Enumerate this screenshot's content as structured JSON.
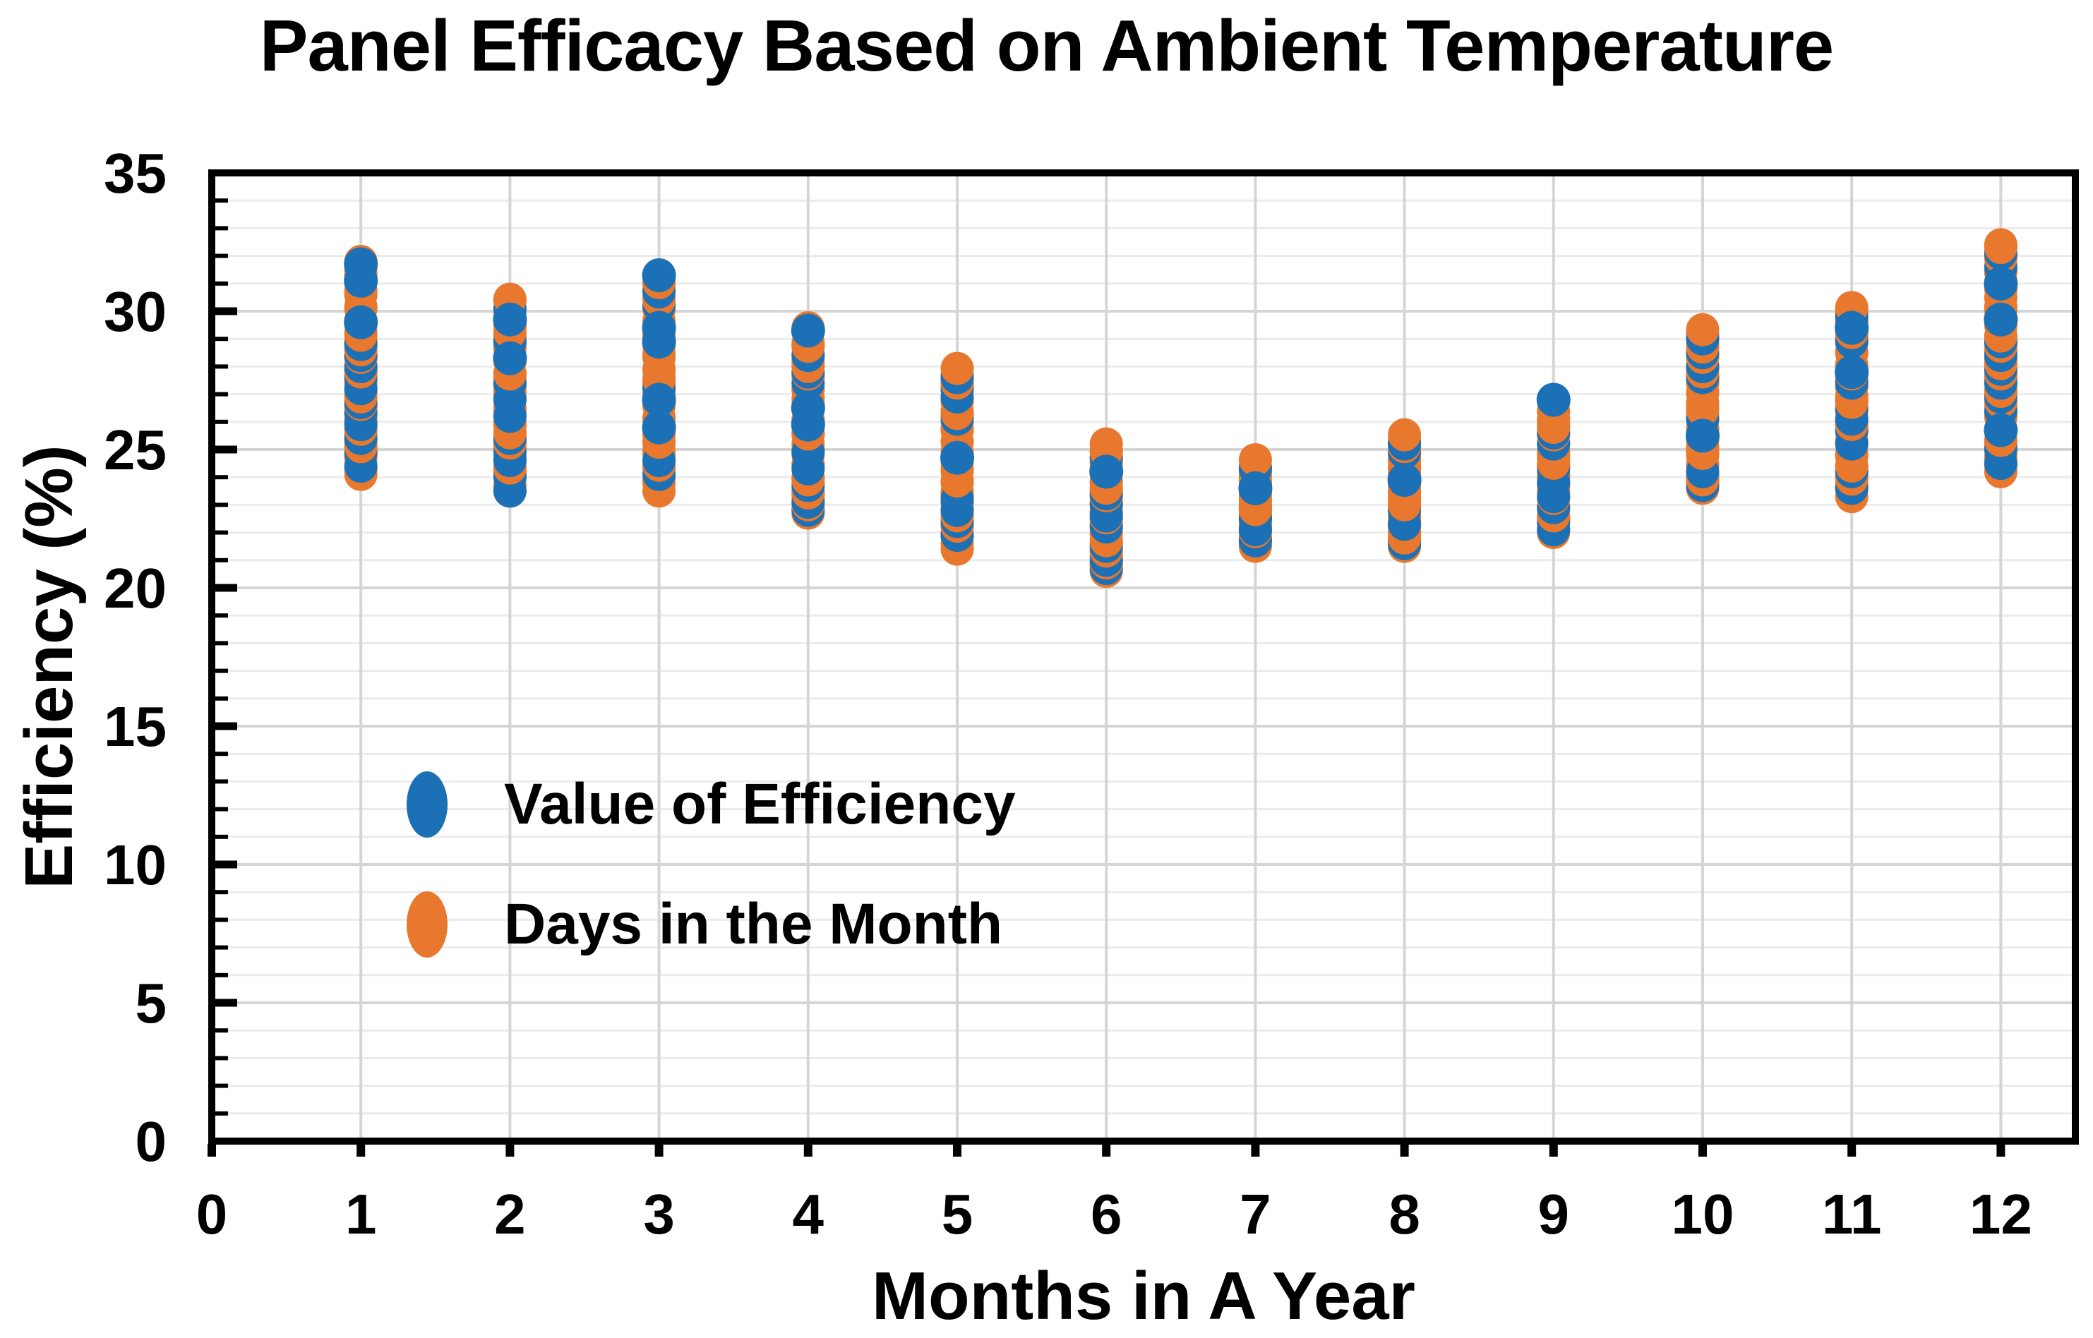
{
  "title": "Panel Efficacy Based on Ambient Temperature",
  "x_axis": {
    "label": "Months in A Year",
    "ticks": [
      0,
      1,
      2,
      3,
      4,
      5,
      6,
      7,
      8,
      9,
      10,
      11,
      12
    ],
    "min": 0,
    "max": 12.5
  },
  "y_axis": {
    "label": "Efficiency (%)",
    "ticks": [
      0,
      5,
      10,
      15,
      20,
      25,
      30,
      35
    ],
    "min": 0,
    "max": 35,
    "minor_step": 1,
    "major_step": 5
  },
  "legend": {
    "items": [
      {
        "label": "Value of Efficiency",
        "series": "efficiency",
        "color": "#1C70B5"
      },
      {
        "label": "Days in the Month",
        "series": "days",
        "color": "#E8782E"
      }
    ],
    "position": "inside left-middle"
  },
  "colors": {
    "efficiency_blue": "#1C70B5",
    "days_orange": "#E8782E",
    "grid_minor": "#EBEBEB",
    "grid_major": "#D5D5D5",
    "spine": "#000000",
    "background": "#FFFFFF",
    "text": "#000000"
  },
  "chart_data": {
    "type": "scatter",
    "title": "Panel Efficacy Based on Ambient Temperature",
    "xlabel": "Months in A Year",
    "ylabel": "Efficiency (%)",
    "xlim": [
      0,
      12.5
    ],
    "ylim": [
      0,
      35
    ],
    "grid": "horizontal minor every 1, horizontal major every 5, vertical line at each month 1-12",
    "legend_position": "inside left-middle",
    "marker": "filled circle, radius ~0.6 efficiency units",
    "series": [
      {
        "name": "Value of Efficiency",
        "color": "#1C70B5",
        "points_key": "efficiency_points",
        "note": "style 0 = thin crescent visible under orange, 2 = wide crescent visible, 1 = fully visible dot"
      },
      {
        "name": "Days in the Month",
        "color": "#E8782E",
        "points_key": "days_value_range",
        "note": "one point per day of month, values densely spanning min..max"
      }
    ],
    "months": [
      {
        "month": 1,
        "days_in_month": 31,
        "days_value_range": {
          "min": 24.1,
          "max": 31.8
        },
        "efficiency_points": [
          [
            24.4,
            2
          ],
          [
            24.9,
            0
          ],
          [
            25.4,
            0
          ],
          [
            25.9,
            2
          ],
          [
            26.3,
            0
          ],
          [
            26.7,
            0
          ],
          [
            27.2,
            2
          ],
          [
            27.6,
            0
          ],
          [
            28.0,
            0
          ],
          [
            28.4,
            0
          ],
          [
            28.8,
            0
          ],
          [
            29.6,
            1
          ],
          [
            31.1,
            1
          ],
          [
            31.7,
            1
          ]
        ]
      },
      {
        "month": 2,
        "days_in_month": 28,
        "days_value_range": {
          "min": 23.5,
          "max": 30.4
        },
        "efficiency_points": [
          [
            23.5,
            2
          ],
          [
            24.0,
            0
          ],
          [
            24.6,
            2
          ],
          [
            24.9,
            0
          ],
          [
            25.4,
            0
          ],
          [
            26.2,
            2
          ],
          [
            26.8,
            2
          ],
          [
            27.4,
            0
          ],
          [
            28.3,
            1
          ],
          [
            28.9,
            0
          ],
          [
            29.7,
            1
          ],
          [
            30.1,
            0
          ]
        ]
      },
      {
        "month": 3,
        "days_in_month": 31,
        "days_value_range": {
          "min": 23.5,
          "max": 31.0
        },
        "efficiency_points": [
          [
            24.1,
            0
          ],
          [
            24.6,
            2
          ],
          [
            25.8,
            1
          ],
          [
            26.8,
            1
          ],
          [
            27.2,
            0
          ],
          [
            28.9,
            1
          ],
          [
            29.4,
            1
          ],
          [
            30.2,
            0
          ],
          [
            30.7,
            0
          ],
          [
            31.3,
            1
          ]
        ]
      },
      {
        "month": 4,
        "days_in_month": 30,
        "days_value_range": {
          "min": 22.7,
          "max": 29.4
        },
        "efficiency_points": [
          [
            22.8,
            0
          ],
          [
            23.1,
            0
          ],
          [
            23.7,
            0
          ],
          [
            24.3,
            2
          ],
          [
            24.9,
            2
          ],
          [
            25.9,
            1
          ],
          [
            26.5,
            1
          ],
          [
            27.4,
            0
          ],
          [
            27.8,
            0
          ],
          [
            28.4,
            0
          ],
          [
            29.3,
            1
          ]
        ]
      },
      {
        "month": 5,
        "days_in_month": 31,
        "days_value_range": {
          "min": 21.4,
          "max": 27.7
        },
        "efficiency_points": [
          [
            21.9,
            0
          ],
          [
            22.4,
            0
          ],
          [
            22.8,
            2
          ],
          [
            23.2,
            2
          ],
          [
            24.7,
            1
          ],
          [
            26.1,
            0
          ],
          [
            26.9,
            0
          ],
          [
            27.2,
            0
          ],
          [
            27.6,
            0
          ]
        ]
      },
      {
        "month": 6,
        "days_in_month": 30,
        "days_value_range": {
          "min": 20.6,
          "max": 25.2
        },
        "efficiency_points": [
          [
            20.7,
            0
          ],
          [
            21.0,
            0
          ],
          [
            21.5,
            0
          ],
          [
            22.2,
            0
          ],
          [
            22.6,
            2
          ],
          [
            23.0,
            0
          ],
          [
            23.4,
            0
          ],
          [
            24.2,
            1
          ],
          [
            24.7,
            0
          ]
        ]
      },
      {
        "month": 7,
        "days_in_month": 31,
        "days_value_range": {
          "min": 21.5,
          "max": 24.4
        },
        "efficiency_points": [
          [
            21.7,
            0
          ],
          [
            22.1,
            2
          ],
          [
            22.5,
            0
          ],
          [
            23.6,
            1
          ],
          [
            24.3,
            0
          ]
        ]
      },
      {
        "month": 8,
        "days_in_month": 31,
        "days_value_range": {
          "min": 21.5,
          "max": 25.3
        },
        "efficiency_points": [
          [
            21.6,
            0
          ],
          [
            22.3,
            2
          ],
          [
            22.8,
            0
          ],
          [
            23.9,
            1
          ],
          [
            24.9,
            0
          ],
          [
            25.2,
            0
          ]
        ]
      },
      {
        "month": 9,
        "days_in_month": 30,
        "days_value_range": {
          "min": 22.0,
          "max": 26.8
        },
        "efficiency_points": [
          [
            22.1,
            0
          ],
          [
            22.4,
            0
          ],
          [
            22.9,
            0
          ],
          [
            23.3,
            2
          ],
          [
            23.8,
            2
          ],
          [
            24.3,
            0
          ],
          [
            25.2,
            0
          ],
          [
            25.6,
            0
          ],
          [
            26.8,
            1
          ]
        ]
      },
      {
        "month": 10,
        "days_in_month": 31,
        "days_value_range": {
          "min": 23.6,
          "max": 29.2
        },
        "efficiency_points": [
          [
            23.7,
            0
          ],
          [
            24.2,
            2
          ],
          [
            25.5,
            1
          ],
          [
            26.1,
            0
          ],
          [
            27.6,
            0
          ],
          [
            28.0,
            0
          ],
          [
            28.5,
            0
          ],
          [
            29.0,
            0
          ]
        ]
      },
      {
        "month": 11,
        "days_in_month": 30,
        "days_value_range": {
          "min": 23.3,
          "max": 30.0
        },
        "efficiency_points": [
          [
            23.6,
            0
          ],
          [
            24.2,
            0
          ],
          [
            25.2,
            2
          ],
          [
            25.7,
            0
          ],
          [
            26.1,
            2
          ],
          [
            26.5,
            0
          ],
          [
            27.4,
            0
          ],
          [
            27.8,
            1
          ],
          [
            28.9,
            0
          ],
          [
            29.4,
            1
          ],
          [
            29.8,
            0
          ]
        ]
      },
      {
        "month": 12,
        "days_in_month": 31,
        "days_value_range": {
          "min": 24.2,
          "max": 32.4
        },
        "efficiency_points": [
          [
            24.5,
            2
          ],
          [
            25.0,
            0
          ],
          [
            25.7,
            1
          ],
          [
            26.4,
            0
          ],
          [
            26.9,
            0
          ],
          [
            27.4,
            0
          ],
          [
            27.9,
            0
          ],
          [
            28.4,
            0
          ],
          [
            28.9,
            0
          ],
          [
            29.7,
            1
          ],
          [
            31.0,
            1
          ],
          [
            31.6,
            0
          ],
          [
            32.1,
            0
          ]
        ]
      }
    ]
  }
}
